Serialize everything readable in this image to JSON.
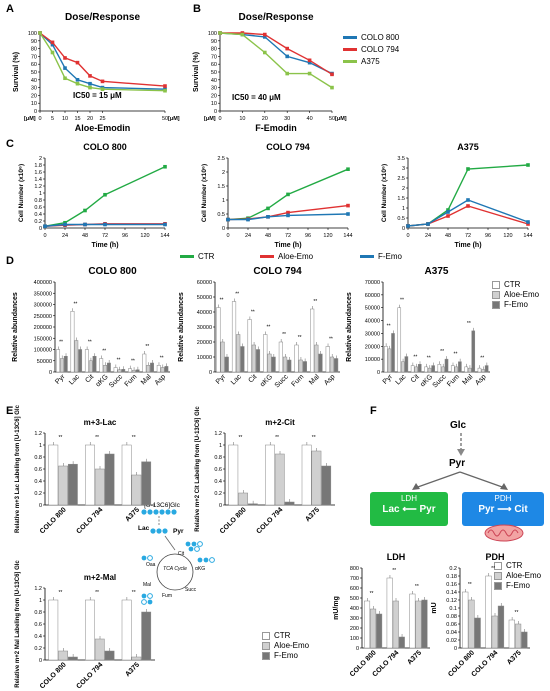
{
  "panels": {
    "A": "A",
    "B": "B",
    "C": "C",
    "D": "D",
    "E": "E",
    "F": "F"
  },
  "colors": {
    "colo800": "#1f77b4",
    "colo794": "#e03232",
    "a375": "#8bc34a",
    "ctr": "#22aa44",
    "aloe": "#e03232",
    "femo": "#1f77b4",
    "ldh": "#22bb44",
    "pdh": "#1e88e5"
  },
  "chart_data": [
    {
      "id": "A",
      "type": "line",
      "title": "Dose/Response",
      "xlabel": "Aloe-Emodin",
      "xunit": "[μM]",
      "ylabel": "Survival (%)",
      "annotation": "IC50 = 15 μM",
      "x_ticks": [
        0,
        5,
        10,
        15,
        20,
        25,
        50
      ],
      "y_ticks": [
        0,
        10,
        20,
        30,
        40,
        50,
        60,
        70,
        80,
        90,
        100
      ],
      "ylim": [
        0,
        100
      ],
      "series": [
        {
          "name": "COLO 800",
          "color": "#1f77b4",
          "x": [
            0,
            5,
            10,
            15,
            20,
            25,
            50
          ],
          "y": [
            100,
            85,
            55,
            40,
            35,
            30,
            28
          ]
        },
        {
          "name": "COLO 794",
          "color": "#e03232",
          "x": [
            0,
            5,
            10,
            15,
            20,
            25,
            50
          ],
          "y": [
            100,
            88,
            68,
            62,
            45,
            38,
            32
          ]
        },
        {
          "name": "A375",
          "color": "#8bc34a",
          "x": [
            0,
            5,
            10,
            15,
            20,
            25,
            50
          ],
          "y": [
            100,
            75,
            42,
            35,
            30,
            28,
            26
          ]
        }
      ]
    },
    {
      "id": "B",
      "type": "line",
      "title": "Dose/Response",
      "xlabel": "F-Emodin",
      "xunit": "[μM]",
      "ylabel": "Survival (%)",
      "annotation": "IC50 = 40 μM",
      "x_ticks": [
        0,
        10,
        20,
        30,
        40,
        50
      ],
      "y_ticks": [
        0,
        10,
        20,
        30,
        40,
        50,
        60,
        70,
        80,
        90,
        100
      ],
      "ylim": [
        0,
        100
      ],
      "series": [
        {
          "name": "COLO 800",
          "color": "#1f77b4",
          "x": [
            0,
            10,
            20,
            30,
            40,
            50
          ],
          "y": [
            100,
            98,
            95,
            70,
            62,
            48
          ]
        },
        {
          "name": "COLO 794",
          "color": "#e03232",
          "x": [
            0,
            10,
            20,
            30,
            40,
            50
          ],
          "y": [
            100,
            100,
            98,
            80,
            65,
            47
          ]
        },
        {
          "name": "A375",
          "color": "#8bc34a",
          "x": [
            0,
            10,
            20,
            30,
            40,
            50
          ],
          "y": [
            100,
            98,
            75,
            48,
            48,
            30
          ]
        }
      ]
    },
    {
      "id": "C1",
      "type": "line",
      "title": "COLO 800",
      "xlabel": "Time (h)",
      "ylabel": "Cell Number (x10⁶)",
      "x_ticks": [
        0,
        24,
        48,
        72,
        96,
        120,
        144
      ],
      "y_ticks": [
        0,
        0.2,
        0.4,
        0.6,
        0.8,
        1,
        1.2,
        1.4,
        1.6,
        1.8,
        2
      ],
      "ylim": [
        0,
        2
      ],
      "series": [
        {
          "name": "CTR",
          "color": "#22aa44",
          "x": [
            0,
            24,
            48,
            72,
            144
          ],
          "y": [
            0.05,
            0.15,
            0.5,
            0.95,
            1.75
          ]
        },
        {
          "name": "Aloe-Emo",
          "color": "#e03232",
          "x": [
            0,
            24,
            48,
            72,
            144
          ],
          "y": [
            0.05,
            0.08,
            0.1,
            0.12,
            0.12
          ]
        },
        {
          "name": "F-Emo",
          "color": "#1f77b4",
          "x": [
            0,
            24,
            48,
            72,
            144
          ],
          "y": [
            0.05,
            0.1,
            0.1,
            0.1,
            0.1
          ]
        }
      ]
    },
    {
      "id": "C2",
      "type": "line",
      "title": "COLO 794",
      "xlabel": "Time (h)",
      "ylabel": "Cell Number (x10⁶)",
      "x_ticks": [
        0,
        24,
        48,
        72,
        96,
        120,
        144
      ],
      "y_ticks": [
        0,
        0.5,
        1,
        1.5,
        2,
        2.5
      ],
      "ylim": [
        0,
        2.5
      ],
      "series": [
        {
          "name": "CTR",
          "color": "#22aa44",
          "x": [
            0,
            24,
            48,
            72,
            144
          ],
          "y": [
            0.3,
            0.35,
            0.7,
            1.2,
            2.1
          ]
        },
        {
          "name": "Aloe-Emo",
          "color": "#e03232",
          "x": [
            0,
            24,
            48,
            72,
            144
          ],
          "y": [
            0.3,
            0.32,
            0.4,
            0.55,
            0.8
          ]
        },
        {
          "name": "F-Emo",
          "color": "#1f77b4",
          "x": [
            0,
            24,
            48,
            72,
            144
          ],
          "y": [
            0.3,
            0.3,
            0.4,
            0.45,
            0.5
          ]
        }
      ]
    },
    {
      "id": "C3",
      "type": "line",
      "title": "A375",
      "xlabel": "Time (h)",
      "ylabel": "Cell Number (x10⁶)",
      "x_ticks": [
        0,
        24,
        48,
        72,
        96,
        120,
        144
      ],
      "y_ticks": [
        0,
        0.5,
        1,
        1.5,
        2,
        2.5,
        3,
        3.5
      ],
      "ylim": [
        0,
        3.5
      ],
      "series": [
        {
          "name": "CTR",
          "color": "#22aa44",
          "x": [
            0,
            24,
            48,
            72,
            144
          ],
          "y": [
            0.1,
            0.2,
            0.9,
            2.95,
            3.15
          ]
        },
        {
          "name": "Aloe-Emo",
          "color": "#e03232",
          "x": [
            0,
            24,
            48,
            72,
            144
          ],
          "y": [
            0.1,
            0.2,
            0.6,
            1.1,
            0.2
          ]
        },
        {
          "name": "F-Emo",
          "color": "#1f77b4",
          "x": [
            0,
            24,
            48,
            72,
            144
          ],
          "y": [
            0.1,
            0.2,
            0.8,
            1.4,
            0.3
          ]
        }
      ]
    },
    {
      "id": "D1",
      "type": "bar",
      "title": "COLO 800",
      "ylabel": "Relative abundances",
      "categories": [
        "Pyr",
        "Lac",
        "Cit",
        "αKG",
        "Succ",
        "Fum",
        "Mal",
        "Asp"
      ],
      "y_ticks": [
        0,
        50000,
        100000,
        150000,
        200000,
        250000,
        300000,
        350000,
        400000
      ],
      "y_tick_labels": [
        "0",
        "50000",
        "100000",
        "150000",
        "200000",
        "250000",
        "300000",
        "350000",
        "400000"
      ],
      "ylim": [
        0,
        400000
      ],
      "series": [
        {
          "name": "CTR",
          "values": [
            100000,
            270000,
            100000,
            60000,
            20000,
            15000,
            80000,
            30000
          ]
        },
        {
          "name": "Aloe-Emo",
          "values": [
            60000,
            140000,
            50000,
            30000,
            10000,
            8000,
            30000,
            20000
          ]
        },
        {
          "name": "F-Emo",
          "values": [
            70000,
            100000,
            70000,
            40000,
            12000,
            10000,
            40000,
            25000
          ]
        }
      ]
    },
    {
      "id": "D2",
      "type": "bar",
      "title": "COLO 794",
      "ylabel": "Relative abundances",
      "categories": [
        "Pyr",
        "Lac",
        "Cit",
        "αKG",
        "Succ",
        "Fum",
        "Mal",
        "Asp"
      ],
      "y_ticks": [
        0,
        10000,
        20000,
        30000,
        40000,
        50000,
        60000
      ],
      "y_tick_labels": [
        "0",
        "10000",
        "20000",
        "30000",
        "40000",
        "50000",
        "60000"
      ],
      "ylim": [
        0,
        60000
      ],
      "series": [
        {
          "name": "CTR",
          "values": [
            43000,
            47000,
            35000,
            25000,
            20000,
            18000,
            42000,
            17000
          ]
        },
        {
          "name": "Aloe-Emo",
          "values": [
            20000,
            25000,
            18000,
            12000,
            10000,
            8000,
            18000,
            10000
          ]
        },
        {
          "name": "F-Emo",
          "values": [
            10000,
            17000,
            15000,
            10000,
            8000,
            7000,
            12000,
            9000
          ]
        }
      ]
    },
    {
      "id": "D3",
      "type": "bar",
      "title": "A375",
      "ylabel": "Relative abundances",
      "categories": [
        "Pyr",
        "Lac",
        "Cit",
        "αKG",
        "Succ",
        "Fum",
        "Mal",
        "Asp"
      ],
      "y_ticks": [
        0,
        10000,
        20000,
        30000,
        40000,
        50000,
        60000,
        70000
      ],
      "y_tick_labels": [
        "0",
        "10000",
        "20000",
        "30000",
        "40000",
        "50000",
        "60000",
        "70000"
      ],
      "ylim": [
        0,
        70000
      ],
      "series": [
        {
          "name": "CTR",
          "values": [
            20000,
            50000,
            5000,
            4000,
            6000,
            5000,
            4000,
            3000
          ]
        },
        {
          "name": "Aloe-Emo",
          "values": [
            18000,
            8000,
            4000,
            3000,
            4000,
            4000,
            3000,
            2000
          ]
        },
        {
          "name": "F-Emo",
          "values": [
            30000,
            12000,
            6000,
            5000,
            10000,
            8000,
            32000,
            5000
          ]
        }
      ]
    },
    {
      "id": "E1",
      "type": "bar",
      "title": "m+3-Lac",
      "ylabel": "Relative m+3 Lac Labeling from [U-13C6] Glc",
      "categories": [
        "COLO 800",
        "COLO 794",
        "A375"
      ],
      "y_ticks": [
        0,
        0.2,
        0.4,
        0.6,
        0.8,
        1,
        1.2
      ],
      "ylim": [
        0,
        1.2
      ],
      "series": [
        {
          "name": "CTR",
          "values": [
            1,
            1,
            1
          ]
        },
        {
          "name": "Aloe-Emo",
          "values": [
            0.65,
            0.6,
            0.5
          ]
        },
        {
          "name": "F-Emo",
          "values": [
            0.68,
            0.85,
            0.72
          ]
        }
      ]
    },
    {
      "id": "E2",
      "type": "bar",
      "title": "m+2-Cit",
      "ylabel": "Relative m+2 Cit Labeling from [U-13C6] Glc",
      "categories": [
        "COLO 800",
        "COLO 794",
        "A375"
      ],
      "y_ticks": [
        0,
        0.2,
        0.4,
        0.6,
        0.8,
        1,
        1.2
      ],
      "ylim": [
        0,
        1.2
      ],
      "series": [
        {
          "name": "CTR",
          "values": [
            1,
            1,
            1
          ]
        },
        {
          "name": "Aloe-Emo",
          "values": [
            0.2,
            0.85,
            0.9
          ]
        },
        {
          "name": "F-Emo",
          "values": [
            0.02,
            0.05,
            0.65
          ]
        }
      ]
    },
    {
      "id": "E3",
      "type": "bar",
      "title": "m+2-Mal",
      "ylabel": "Relative m+2 Mal Labeling from [U-13C6] Glc",
      "categories": [
        "COLO 800",
        "COLO 794",
        "A375"
      ],
      "y_ticks": [
        0,
        0.2,
        0.4,
        0.6,
        0.8,
        1,
        1.2
      ],
      "ylim": [
        0,
        1.2
      ],
      "series": [
        {
          "name": "CTR",
          "values": [
            1,
            1,
            1
          ]
        },
        {
          "name": "Aloe-Emo",
          "values": [
            0.15,
            0.35,
            0.05
          ]
        },
        {
          "name": "F-Emo",
          "values": [
            0.05,
            0.15,
            0.8
          ]
        }
      ]
    },
    {
      "id": "F1",
      "type": "bar",
      "title": "LDH",
      "ylabel": "mU/mg",
      "categories": [
        "COLO 800",
        "COLO 794",
        "A375"
      ],
      "y_ticks": [
        0,
        100,
        200,
        300,
        400,
        500,
        600,
        700,
        800
      ],
      "ylim": [
        0,
        800
      ],
      "series": [
        {
          "name": "CTR",
          "values": [
            470,
            700,
            540
          ]
        },
        {
          "name": "Aloe-Emo",
          "values": [
            390,
            470,
            470
          ]
        },
        {
          "name": "F-Emo",
          "values": [
            340,
            110,
            480
          ]
        }
      ]
    },
    {
      "id": "F2",
      "type": "bar",
      "title": "PDH",
      "ylabel": "mU",
      "categories": [
        "COLO 800",
        "COLO 794",
        "A375"
      ],
      "y_ticks": [
        0,
        0.02,
        0.04,
        0.06,
        0.08,
        0.1,
        0.12,
        0.14,
        0.16,
        0.18,
        0.2
      ],
      "ylim": [
        0,
        0.2
      ],
      "series": [
        {
          "name": "CTR",
          "values": [
            0.14,
            0.18,
            0.07
          ]
        },
        {
          "name": "Aloe-Emo",
          "values": [
            0.12,
            0.08,
            0.06
          ]
        },
        {
          "name": "F-Emo",
          "values": [
            0.075,
            0.105,
            0.04
          ]
        }
      ]
    }
  ],
  "legends": {
    "AB": [
      "COLO 800",
      "COLO 794",
      "A375"
    ],
    "C": [
      "CTR",
      "Aloe-Emo",
      "F-Emo"
    ],
    "D": [
      "CTR",
      "Aloe-Emo",
      "F-Emo"
    ],
    "E": [
      "CTR",
      "Aloe-Emo",
      "F-Emo"
    ],
    "F": [
      "CTR",
      "Aloe-Emo",
      "F-Emo"
    ]
  },
  "diagram_E": {
    "glc": "[U-13C6]Glc",
    "pyr": "Pyr",
    "lac": "Lac",
    "cit": "Cit",
    "akg": "αKG",
    "succ": "Succ",
    "fum": "Fum",
    "mal": "Mal",
    "oaa": "Oaa",
    "cycle": "TCA Cycle"
  },
  "diagram_F": {
    "glc": "Glc",
    "pyr": "Pyr",
    "ldh_title": "LDH",
    "ldh_reaction": "Lac ⟵ Pyr",
    "pdh_title": "PDH",
    "pdh_reaction": "Pyr ⟶ Cit"
  },
  "sig": "**"
}
